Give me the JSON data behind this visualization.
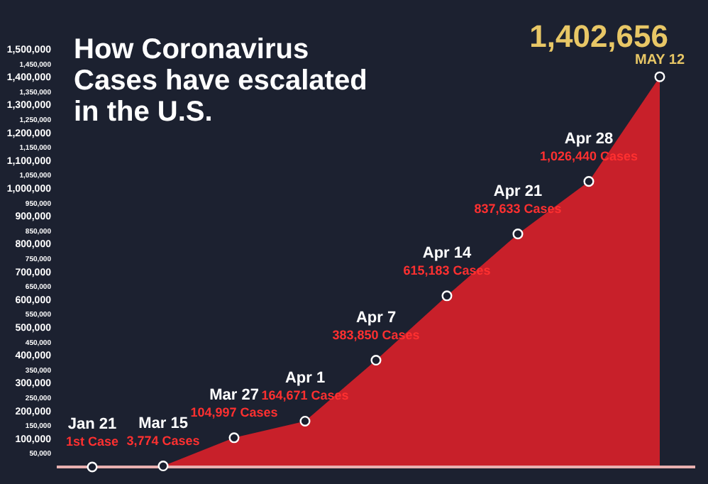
{
  "chart_data": {
    "type": "area",
    "title": "How Coronavirus\nCases have escalated\nin the U.S.",
    "categories": [
      "Jan 21",
      "Mar 15",
      "Mar 27",
      "Apr 1",
      "Apr 7",
      "Apr 14",
      "Apr 21",
      "Apr 28",
      "MAY 12"
    ],
    "series": [
      {
        "color": "#c8202a",
        "values": [
          1,
          3774,
          104997,
          164671,
          383850,
          615183,
          837633,
          1026440,
          1402656
        ]
      }
    ],
    "value_labels": [
      "1st Case",
      "3,774 Cases",
      "104,997 Cases",
      "164,671 Cases",
      "383,850 Cases",
      "615,183 Cases",
      "837,633 Cases",
      "1,026,440 Cases",
      "1,402,656"
    ],
    "ylim": [
      0,
      1500000
    ],
    "yticks": [
      {
        "value": 50000,
        "label": "50,000"
      },
      {
        "value": 100000,
        "label": "100,000"
      },
      {
        "value": 150000,
        "label": "150,000"
      },
      {
        "value": 200000,
        "label": "200,000"
      },
      {
        "value": 250000,
        "label": "250,000"
      },
      {
        "value": 300000,
        "label": "300,000"
      },
      {
        "value": 350000,
        "label": "350,000"
      },
      {
        "value": 400000,
        "label": "400,000"
      },
      {
        "value": 450000,
        "label": "450,000"
      },
      {
        "value": 500000,
        "label": "500,000"
      },
      {
        "value": 550000,
        "label": "550,000"
      },
      {
        "value": 600000,
        "label": "600,000"
      },
      {
        "value": 650000,
        "label": "650,000"
      },
      {
        "value": 700000,
        "label": "700,000"
      },
      {
        "value": 750000,
        "label": "750,000"
      },
      {
        "value": 800000,
        "label": "800,000"
      },
      {
        "value": 850000,
        "label": "850,000"
      },
      {
        "value": 900000,
        "label": "900,000"
      },
      {
        "value": 950000,
        "label": "950,000"
      },
      {
        "value": 1000000,
        "label": "1,000,000"
      },
      {
        "value": 1050000,
        "label": "1,050,000"
      },
      {
        "value": 1100000,
        "label": "1,100,000"
      },
      {
        "value": 1150000,
        "label": "1,150,000"
      },
      {
        "value": 1200000,
        "label": "1,200,000"
      },
      {
        "value": 1250000,
        "label": "1,250,000"
      },
      {
        "value": 1300000,
        "label": "1,300,000"
      },
      {
        "value": 1350000,
        "label": "1,350,000"
      },
      {
        "value": 1400000,
        "label": "1,400,000"
      },
      {
        "value": 1450000,
        "label": "1,450,000"
      },
      {
        "value": 1500000,
        "label": "1,500,000"
      }
    ],
    "tick_labels": "y",
    "marker": "circle",
    "grid": false
  }
}
